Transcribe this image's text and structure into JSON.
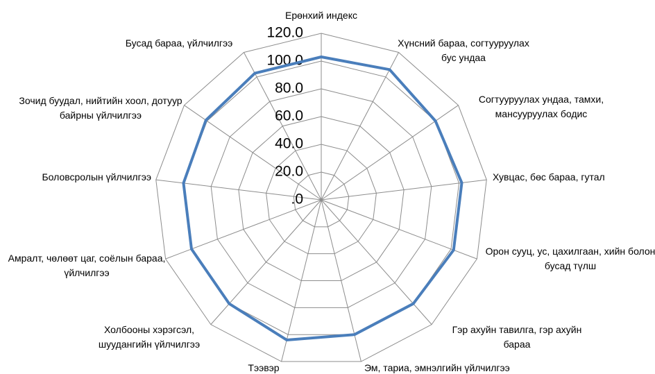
{
  "chart_data": {
    "type": "radar",
    "categories": [
      "Ерөнхий индекс",
      "Хүнсний бараа, согтууруулах бус ундаа",
      "Согтууруулах ундаа, тамхи, мансууруулах бодис",
      "Хувцас, бөс бараа, гутал",
      "Орон сууц, ус, цахилгаан, хийн болон бусад түлш",
      "Гэр ахуйн тавилга, гэр ахуйн бараа",
      "Эм, тариа, эмнэлгийн үйлчилгээ",
      "Тээвэр",
      "Холбооны хэрэгсэл, шуудангийн үйлчилгээ",
      "Амралт, чөлөөт цаг, соёлын бараа, үйлчилгээ",
      "Боловсролын үйлчилгээ",
      "Зочид буудал, нийтийн хоол, дотуур байрны үйлчилгээ",
      "Бусад бараа, үйлчилгээ"
    ],
    "values": [
      103,
      106,
      100,
      102,
      102,
      100,
      100,
      104,
      100,
      100,
      100,
      101,
      103
    ],
    "color": "#4a7ebb",
    "ylim": [
      0,
      120
    ],
    "yticks": [
      {
        "value": 0,
        "label": ".0"
      },
      {
        "value": 20,
        "label": "20.0"
      },
      {
        "value": 40,
        "label": "40.0"
      },
      {
        "value": 60,
        "label": "60.0"
      },
      {
        "value": 80,
        "label": "80.0"
      },
      {
        "value": 100,
        "label": "100.0"
      },
      {
        "value": 120,
        "label": "120.0"
      }
    ],
    "grid": true
  }
}
